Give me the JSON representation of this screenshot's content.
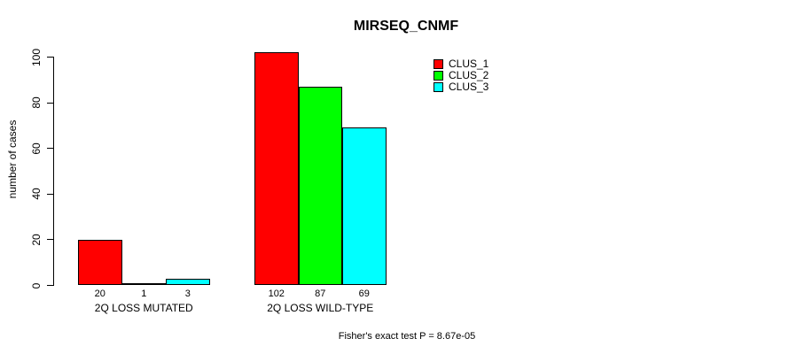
{
  "chart_data": {
    "type": "bar",
    "title": "MIRSEQ_CNMF",
    "xlabel": "",
    "ylabel": "number of cases",
    "ylim": [
      0,
      100
    ],
    "yticks": [
      0,
      20,
      40,
      60,
      80,
      100
    ],
    "grid": false,
    "legend_position": "top-right",
    "categories": [
      "2Q LOSS MUTATED",
      "2Q LOSS WILD-TYPE"
    ],
    "series": [
      {
        "name": "CLUS_1",
        "color": "#ff0000",
        "values": [
          20,
          102
        ]
      },
      {
        "name": "CLUS_2",
        "color": "#00ff00",
        "values": [
          1,
          87
        ]
      },
      {
        "name": "CLUS_3",
        "color": "#00ffff",
        "values": [
          3,
          69
        ]
      }
    ],
    "bar_value_labels_shown": true,
    "annotation": "Fisher's exact test P = 8.67e-05"
  }
}
